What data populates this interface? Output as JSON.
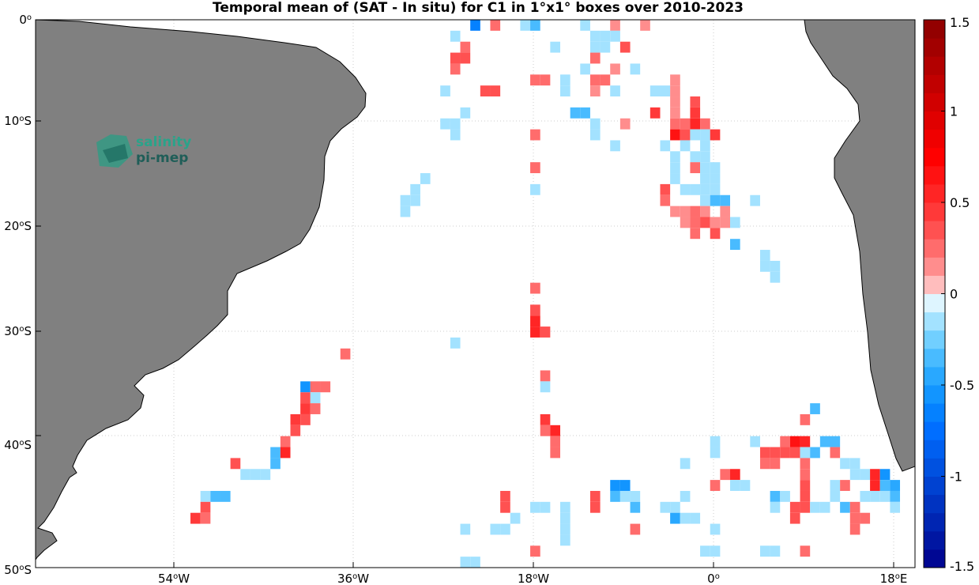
{
  "title": "Temporal mean of (SAT - In situ) for C1 in 1°x1° boxes over 2010-2023",
  "logo": {
    "line1": "salinity",
    "line2": "pi-mep"
  },
  "colorbar": {
    "range": [
      -1.5,
      1.5
    ],
    "ticks": [
      "1.5",
      "1",
      "0.5",
      "0",
      "-0.5",
      "-1",
      "-1.5"
    ],
    "tick_values": [
      1.5,
      1.0,
      0.5,
      0.0,
      -0.5,
      -1.0,
      -1.5
    ],
    "levels": 30
  },
  "axes": {
    "lon_range": [
      -68,
      20
    ],
    "lat_range": [
      -50,
      0
    ],
    "lon_ticks": [
      {
        "value": -54,
        "deg": "54",
        "hemi": "W"
      },
      {
        "value": -36,
        "deg": "36",
        "hemi": "W"
      },
      {
        "value": -18,
        "deg": "18",
        "hemi": "W"
      },
      {
        "value": 0,
        "deg": "0",
        "hemi": ""
      },
      {
        "value": 18,
        "deg": "18",
        "hemi": "E"
      }
    ],
    "lat_ticks": [
      {
        "value": 0,
        "deg": "0",
        "hemi": ""
      },
      {
        "value": -10,
        "deg": "10",
        "hemi": "S"
      },
      {
        "value": -20,
        "deg": "20",
        "hemi": "S"
      },
      {
        "value": -30,
        "deg": "30",
        "hemi": "S"
      },
      {
        "value": -40,
        "deg": "40",
        "hemi": "S"
      },
      {
        "value": -50,
        "deg": "50",
        "hemi": "S"
      }
    ],
    "grid": "dotted"
  },
  "colors": {
    "land": "#808080",
    "ocean": "#ffffff",
    "grid": "#c8c8c8"
  },
  "chart_data": {
    "type": "heatmap",
    "units": "1°x1° boxes, mean SAT - In situ",
    "cells": [
      [
        -24,
        -0.5,
        -0.7
      ],
      [
        -22,
        -0.5,
        0.2
      ],
      [
        -19,
        -0.5,
        -0.1
      ],
      [
        -18,
        -0.5,
        -0.3
      ],
      [
        -13,
        -0.5,
        -0.2
      ],
      [
        -10,
        -0.5,
        0.1
      ],
      [
        -7,
        -0.5,
        0.1
      ],
      [
        -26,
        -1.5,
        -0.1
      ],
      [
        -12,
        -1.5,
        -0.1
      ],
      [
        -11,
        -1.5,
        -0.2
      ],
      [
        -10,
        -1.5,
        -0.1
      ],
      [
        -25,
        -2.5,
        0.2
      ],
      [
        -16,
        -2.5,
        -0.1
      ],
      [
        -12,
        -2.5,
        -0.2
      ],
      [
        -11,
        -2.5,
        -0.2
      ],
      [
        -9,
        -2.5,
        0.3
      ],
      [
        -26,
        -3.5,
        0.3
      ],
      [
        -25,
        -3.5,
        0.3
      ],
      [
        -12,
        -3.5,
        0.2
      ],
      [
        -26,
        -4.5,
        0.2
      ],
      [
        -13,
        -4.5,
        -0.1
      ],
      [
        -10,
        -4.5,
        0.1
      ],
      [
        -8,
        -4.5,
        -0.1
      ],
      [
        -18,
        -5.5,
        0.2
      ],
      [
        -17,
        -5.5,
        0.2
      ],
      [
        -15,
        -5.5,
        -0.2
      ],
      [
        -12,
        -5.5,
        0.2
      ],
      [
        -11,
        -5.5,
        0.2
      ],
      [
        -4,
        -5.5,
        0.1
      ],
      [
        -27,
        -6.5,
        -0.1
      ],
      [
        -23,
        -6.5,
        0.3
      ],
      [
        -22,
        -6.5,
        0.3
      ],
      [
        -15,
        -6.5,
        -0.2
      ],
      [
        -12,
        -6.5,
        0.1
      ],
      [
        -10,
        -6.5,
        -0.1
      ],
      [
        -6,
        -6.5,
        -0.1
      ],
      [
        -5,
        -6.5,
        -0.1
      ],
      [
        -4,
        -6.5,
        0.1
      ],
      [
        -4,
        -7.5,
        0.1
      ],
      [
        -2,
        -7.5,
        0.3
      ],
      [
        -25,
        -8.5,
        -0.1
      ],
      [
        -14,
        -8.5,
        -0.3
      ],
      [
        -13,
        -8.5,
        -0.3
      ],
      [
        -6,
        -8.5,
        0.4
      ],
      [
        -4,
        -8.5,
        0.1
      ],
      [
        -2,
        -8.5,
        0.4
      ],
      [
        -27,
        -9.5,
        -0.1
      ],
      [
        -26,
        -9.5,
        -0.1
      ],
      [
        -12,
        -9.5,
        -0.1
      ],
      [
        -9,
        -9.5,
        0.1
      ],
      [
        -4,
        -9.5,
        0.2
      ],
      [
        -3,
        -9.5,
        0.2
      ],
      [
        -2,
        -9.5,
        0.5
      ],
      [
        -1,
        -9.5,
        0.2
      ],
      [
        -26,
        -10.5,
        -0.2
      ],
      [
        -18,
        -10.5,
        0.2
      ],
      [
        -12,
        -10.5,
        -0.1
      ],
      [
        -4,
        -10.5,
        0.6
      ],
      [
        -3,
        -10.5,
        0.3
      ],
      [
        -2,
        -10.5,
        -0.1
      ],
      [
        -1,
        -10.5,
        -0.2
      ],
      [
        0,
        -10.5,
        0.4
      ],
      [
        -10,
        -11.5,
        -0.1
      ],
      [
        -5,
        -11.5,
        -0.1
      ],
      [
        -3,
        -11.5,
        -0.2
      ],
      [
        -1,
        -11.5,
        -0.1
      ],
      [
        -4,
        -12.5,
        -0.2
      ],
      [
        -2,
        -12.5,
        -0.1
      ],
      [
        -1,
        -12.5,
        -0.1
      ],
      [
        -18,
        -13.5,
        0.2
      ],
      [
        -4,
        -13.5,
        -0.2
      ],
      [
        -2,
        -13.5,
        0.2
      ],
      [
        -1,
        -13.5,
        -0.1
      ],
      [
        0,
        -13.5,
        -0.1
      ],
      [
        -29,
        -14.5,
        -0.1
      ],
      [
        -4,
        -14.5,
        -0.1
      ],
      [
        -1,
        -14.5,
        -0.1
      ],
      [
        0,
        -14.5,
        -0.1
      ],
      [
        -30,
        -15.5,
        -0.1
      ],
      [
        -18,
        -15.5,
        -0.1
      ],
      [
        -5,
        -15.5,
        0.3
      ],
      [
        -3,
        -15.5,
        -0.2
      ],
      [
        -2,
        -15.5,
        -0.2
      ],
      [
        -1,
        -15.5,
        -0.1
      ],
      [
        0,
        -15.5,
        -0.1
      ],
      [
        -31,
        -16.5,
        -0.2
      ],
      [
        -30,
        -16.5,
        -0.1
      ],
      [
        -5,
        -16.5,
        0.2
      ],
      [
        -1,
        -16.5,
        -0.2
      ],
      [
        0,
        -16.5,
        -0.3
      ],
      [
        1,
        -16.5,
        -0.4
      ],
      [
        4,
        -16.5,
        -0.1
      ],
      [
        -31,
        -17.5,
        -0.1
      ],
      [
        -4,
        -17.5,
        0.1
      ],
      [
        -3,
        -17.5,
        0.1
      ],
      [
        -2,
        -17.5,
        0.2
      ],
      [
        -1,
        -17.5,
        0.1
      ],
      [
        1,
        -17.5,
        0.1
      ],
      [
        -3,
        -18.5,
        0.1
      ],
      [
        -2,
        -18.5,
        0.2
      ],
      [
        -1,
        -18.5,
        0.3
      ],
      [
        0,
        -18.5,
        0.1
      ],
      [
        1,
        -18.5,
        0.1
      ],
      [
        2,
        -18.5,
        -0.1
      ],
      [
        -2,
        -19.5,
        0.2
      ],
      [
        0,
        -19.5,
        0.3
      ],
      [
        2,
        -20.5,
        -0.4
      ],
      [
        5,
        -21.5,
        -0.2
      ],
      [
        5,
        -22.5,
        -0.2
      ],
      [
        6,
        -22.5,
        -0.2
      ],
      [
        6,
        -23.5,
        -0.1
      ],
      [
        -18,
        -24.5,
        0.2
      ],
      [
        -18,
        -26.5,
        0.3
      ],
      [
        -18,
        -27.5,
        0.5
      ],
      [
        -18,
        -28.5,
        0.5
      ],
      [
        -17,
        -28.5,
        0.3
      ],
      [
        -26,
        -29.5,
        -0.2
      ],
      [
        -37,
        -30.5,
        0.2
      ],
      [
        -17,
        -32.5,
        0.2
      ],
      [
        -41,
        -33.5,
        -0.6
      ],
      [
        -40,
        -33.5,
        0.2
      ],
      [
        -39,
        -33.5,
        0.2
      ],
      [
        -17,
        -33.5,
        -0.1
      ],
      [
        -41,
        -34.5,
        0.3
      ],
      [
        -40,
        -34.5,
        -0.1
      ],
      [
        -41,
        -35.5,
        0.4
      ],
      [
        -40,
        -35.5,
        0.2
      ],
      [
        -42,
        -36.5,
        0.4
      ],
      [
        -41,
        -36.5,
        0.3
      ],
      [
        -17,
        -36.5,
        0.4
      ],
      [
        -42,
        -37.5,
        0.3
      ],
      [
        -17,
        -37.5,
        0.2
      ],
      [
        -16,
        -37.5,
        0.5
      ],
      [
        9,
        -36.5,
        0.2
      ],
      [
        10,
        -35.5,
        -0.4
      ],
      [
        -43,
        -38.5,
        0.2
      ],
      [
        -16,
        -38.5,
        0.2
      ],
      [
        0,
        -38.5,
        -0.1
      ],
      [
        4,
        -38.5,
        -0.1
      ],
      [
        7,
        -38.5,
        0.2
      ],
      [
        8,
        -38.5,
        0.6
      ],
      [
        9,
        -38.5,
        0.5
      ],
      [
        11,
        -38.5,
        -0.3
      ],
      [
        12,
        -38.5,
        -0.3
      ],
      [
        -44,
        -39.5,
        -0.3
      ],
      [
        -43,
        -39.5,
        0.5
      ],
      [
        -16,
        -39.5,
        0.2
      ],
      [
        0,
        -39.5,
        -0.1
      ],
      [
        5,
        -39.5,
        0.3
      ],
      [
        6,
        -39.5,
        0.3
      ],
      [
        7,
        -39.5,
        0.3
      ],
      [
        8,
        -39.5,
        0.3
      ],
      [
        9,
        -39.5,
        -0.2
      ],
      [
        10,
        -39.5,
        -0.3
      ],
      [
        12,
        -39.5,
        0.2
      ],
      [
        -44,
        -40.5,
        -0.4
      ],
      [
        -48,
        -40.5,
        0.3
      ],
      [
        -3,
        -40.5,
        -0.1
      ],
      [
        5,
        -40.5,
        0.2
      ],
      [
        6,
        -40.5,
        0.2
      ],
      [
        9,
        -40.5,
        0.2
      ],
      [
        13,
        -40.5,
        -0.1
      ],
      [
        14,
        -40.5,
        -0.1
      ],
      [
        -46,
        -41.5,
        -0.2
      ],
      [
        -47,
        -41.5,
        -0.2
      ],
      [
        -45,
        -41.5,
        -0.1
      ],
      [
        1,
        -41.5,
        0.2
      ],
      [
        2,
        -41.5,
        0.5
      ],
      [
        9,
        -41.5,
        0.2
      ],
      [
        14,
        -41.5,
        -0.1
      ],
      [
        15,
        -41.5,
        -0.1
      ],
      [
        16,
        -41.5,
        0.5
      ],
      [
        17,
        -41.5,
        -0.6
      ],
      [
        -10,
        -42.5,
        -0.6
      ],
      [
        -9,
        -42.5,
        -0.6
      ],
      [
        0,
        -42.5,
        0.2
      ],
      [
        2,
        -42.5,
        -0.1
      ],
      [
        3,
        -42.5,
        -0.1
      ],
      [
        9,
        -42.5,
        0.3
      ],
      [
        12,
        -42.5,
        -0.1
      ],
      [
        13,
        -42.5,
        0.2
      ],
      [
        16,
        -42.5,
        0.5
      ],
      [
        17,
        -42.5,
        -0.3
      ],
      [
        18,
        -42.5,
        -0.5
      ],
      [
        -51,
        -43.5,
        -0.1
      ],
      [
        -50,
        -43.5,
        -0.3
      ],
      [
        -49,
        -43.5,
        -0.3
      ],
      [
        -21,
        -43.5,
        0.3
      ],
      [
        -12,
        -43.5,
        0.3
      ],
      [
        -10,
        -43.5,
        -0.4
      ],
      [
        -9,
        -43.5,
        -0.2
      ],
      [
        -8,
        -43.5,
        -0.1
      ],
      [
        -3,
        -43.5,
        -0.1
      ],
      [
        6,
        -43.5,
        -0.3
      ],
      [
        7,
        -43.5,
        -0.2
      ],
      [
        9,
        -43.5,
        0.3
      ],
      [
        12,
        -43.5,
        -0.1
      ],
      [
        15,
        -43.5,
        -0.1
      ],
      [
        16,
        -43.5,
        -0.2
      ],
      [
        17,
        -43.5,
        -0.2
      ],
      [
        18,
        -43.5,
        -0.3
      ],
      [
        -51,
        -44.5,
        0.3
      ],
      [
        -21,
        -44.5,
        0.3
      ],
      [
        -18,
        -44.5,
        -0.1
      ],
      [
        -17,
        -44.5,
        -0.1
      ],
      [
        -15,
        -44.5,
        -0.1
      ],
      [
        -12,
        -44.5,
        0.3
      ],
      [
        -8,
        -44.5,
        -0.3
      ],
      [
        -5,
        -44.5,
        -0.2
      ],
      [
        -4,
        -44.5,
        -0.2
      ],
      [
        6,
        -44.5,
        -0.2
      ],
      [
        8,
        -44.5,
        0.3
      ],
      [
        9,
        -44.5,
        0.3
      ],
      [
        10,
        -44.5,
        -0.1
      ],
      [
        11,
        -44.5,
        -0.2
      ],
      [
        13,
        -44.5,
        -0.3
      ],
      [
        14,
        -44.5,
        0.2
      ],
      [
        18,
        -44.5,
        -0.1
      ],
      [
        -52,
        -45.5,
        0.4
      ],
      [
        -51,
        -45.5,
        0.2
      ],
      [
        -20,
        -45.5,
        -0.1
      ],
      [
        -15,
        -45.5,
        -0.1
      ],
      [
        -4,
        -45.5,
        -0.5
      ],
      [
        -3,
        -45.5,
        -0.2
      ],
      [
        -2,
        -45.5,
        -0.1
      ],
      [
        8,
        -45.5,
        0.3
      ],
      [
        14,
        -45.5,
        0.2
      ],
      [
        15,
        -45.5,
        0.2
      ],
      [
        -25,
        -46.5,
        -0.1
      ],
      [
        -22,
        -46.5,
        -0.1
      ],
      [
        -21,
        -46.5,
        -0.2
      ],
      [
        -15,
        -46.5,
        -0.1
      ],
      [
        -8,
        -46.5,
        0.2
      ],
      [
        0,
        -46.5,
        -0.1
      ],
      [
        14,
        -46.5,
        0.2
      ],
      [
        -15,
        -47.5,
        -0.1
      ],
      [
        -18,
        -48.5,
        0.2
      ],
      [
        0,
        -48.5,
        -0.1
      ],
      [
        -1,
        -48.5,
        -0.1
      ],
      [
        5,
        -48.5,
        -0.1
      ],
      [
        6,
        -48.5,
        -0.1
      ],
      [
        9,
        -48.5,
        0.2
      ],
      [
        -25,
        -49.5,
        -0.1
      ],
      [
        -24,
        -49.5,
        -0.2
      ]
    ]
  }
}
